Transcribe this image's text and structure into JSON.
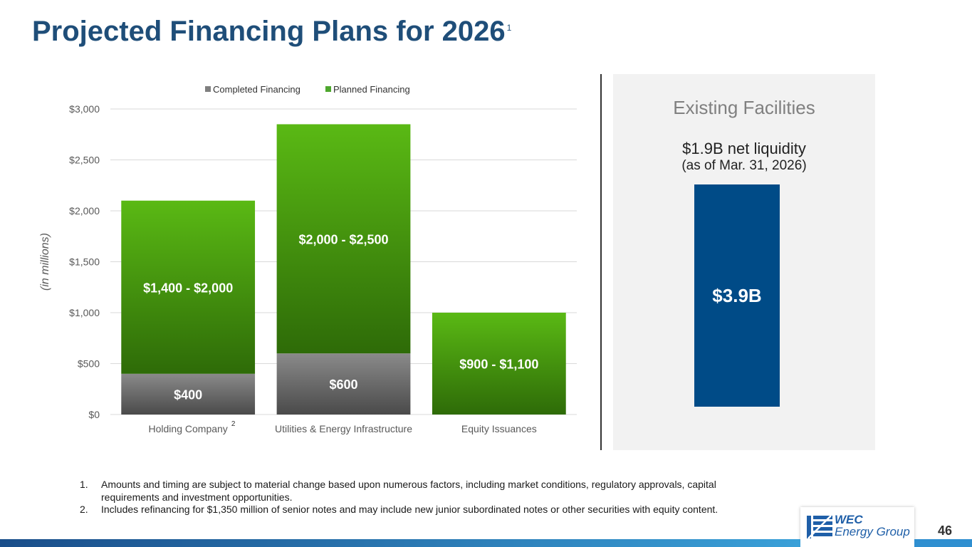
{
  "title": "Projected Financing Plans for 2026",
  "title_footnote": "1",
  "chart_data": {
    "type": "bar",
    "stacked": true,
    "categories": [
      "Holding Company",
      "Utilities & Energy Infrastructure",
      "Equity Issuances"
    ],
    "category_footnotes": [
      "2",
      "",
      ""
    ],
    "series": [
      {
        "name": "Completed Financing",
        "values": [
          400,
          600,
          0
        ],
        "labels": [
          "$400",
          "$600",
          ""
        ],
        "color": "#7f7f7f"
      },
      {
        "name": "Planned Financing",
        "values": [
          1700,
          2250,
          1000
        ],
        "labels": [
          "$1,400 - $2,000",
          "$2,000 - $2,500",
          "$900 - $1,100"
        ],
        "color": "#4ea72e"
      }
    ],
    "ylabel": "(in millions)",
    "ylim": [
      0,
      3000
    ],
    "yticks": [
      0,
      500,
      1000,
      1500,
      2000,
      2500,
      3000
    ],
    "ytick_labels": [
      "$0",
      "$500",
      "$1,000",
      "$1,500",
      "$2,000",
      "$2,500",
      "$3,000"
    ],
    "grid": true,
    "legend_position": "top"
  },
  "facilities": {
    "title": "Existing Facilities",
    "subtitle": "$1.9B net liquidity",
    "subtitle2": "(as of Mar. 31, 2026)",
    "bar_label": "$3.9B",
    "bar_color": "#004b87"
  },
  "footnotes": [
    {
      "num": "1.",
      "text": "Amounts and timing are subject to material change based upon numerous factors, including market conditions, regulatory approvals, capital requirements and investment opportunities."
    },
    {
      "num": "2.",
      "text": "Includes refinancing for $1,350 million of senior notes and may include new junior subordinated notes or other securities with equity content."
    }
  ],
  "logo": {
    "line1": "WEC",
    "line2": "Energy Group"
  },
  "page_number": "46"
}
